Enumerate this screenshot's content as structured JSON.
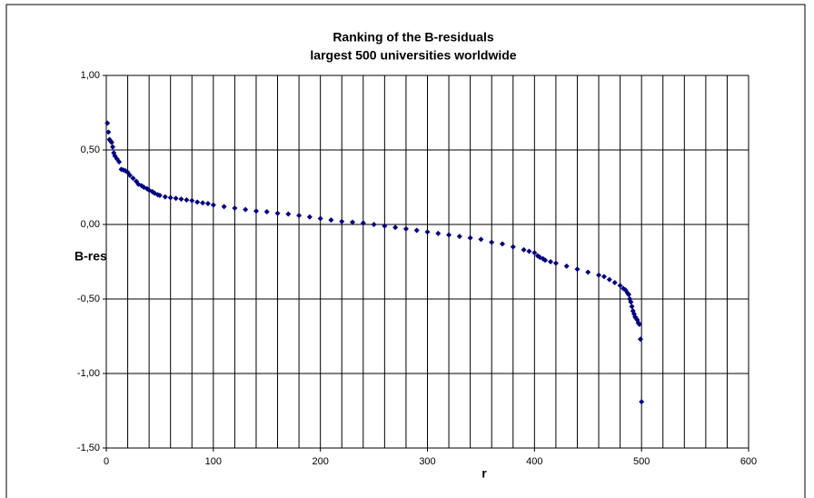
{
  "chart_data": {
    "type": "scatter",
    "title": "Ranking of the B-residuals",
    "subtitle": "largest 500 universities worldwide",
    "x_label": "r",
    "y_label": "B-residual",
    "color": "#000080",
    "grid": true,
    "xlim": [
      0,
      600
    ],
    "xticks": [
      0,
      100,
      200,
      300,
      400,
      500,
      600
    ],
    "xgrid": [
      0,
      20,
      40,
      60,
      80,
      100,
      120,
      140,
      160,
      180,
      200,
      220,
      240,
      260,
      280,
      300,
      320,
      340,
      360,
      380,
      400,
      420,
      440,
      460,
      480,
      500,
      520,
      540,
      560,
      580,
      600
    ],
    "ylim": [
      -1.5,
      1.0
    ],
    "yticks": [
      {
        "value": -1.5,
        "label": "-1,50"
      },
      {
        "value": -1.0,
        "label": "-1,00"
      },
      {
        "value": -0.5,
        "label": "-0,50"
      },
      {
        "value": 0.0,
        "label": "0,00"
      },
      {
        "value": 0.5,
        "label": "0,50"
      },
      {
        "value": 1.0,
        "label": "1,00"
      }
    ],
    "x": [
      1,
      2,
      3,
      4,
      5,
      6,
      7,
      8,
      10,
      12,
      14,
      16,
      18,
      20,
      22,
      25,
      28,
      30,
      33,
      35,
      38,
      40,
      43,
      45,
      48,
      50,
      55,
      60,
      65,
      70,
      75,
      80,
      85,
      90,
      95,
      100,
      110,
      120,
      130,
      140,
      150,
      160,
      170,
      180,
      190,
      200,
      210,
      220,
      230,
      240,
      250,
      260,
      270,
      280,
      290,
      300,
      310,
      320,
      330,
      340,
      350,
      360,
      370,
      380,
      390,
      395,
      400,
      403,
      405,
      408,
      410,
      415,
      420,
      430,
      440,
      450,
      460,
      465,
      470,
      475,
      480,
      483,
      485,
      487,
      488,
      489,
      490,
      491,
      492,
      493,
      494,
      495,
      496,
      497,
      498,
      499,
      500
    ],
    "values": [
      0.68,
      0.62,
      0.57,
      0.56,
      0.55,
      0.52,
      0.48,
      0.46,
      0.44,
      0.42,
      0.37,
      0.365,
      0.36,
      0.35,
      0.33,
      0.31,
      0.29,
      0.27,
      0.26,
      0.25,
      0.24,
      0.23,
      0.22,
      0.21,
      0.2,
      0.195,
      0.185,
      0.18,
      0.175,
      0.17,
      0.165,
      0.16,
      0.15,
      0.145,
      0.14,
      0.13,
      0.12,
      0.11,
      0.1,
      0.09,
      0.085,
      0.075,
      0.07,
      0.06,
      0.05,
      0.04,
      0.03,
      0.02,
      0.015,
      0.01,
      0.0,
      -0.01,
      -0.02,
      -0.03,
      -0.04,
      -0.05,
      -0.06,
      -0.07,
      -0.08,
      -0.09,
      -0.1,
      -0.12,
      -0.13,
      -0.15,
      -0.17,
      -0.18,
      -0.19,
      -0.21,
      -0.22,
      -0.23,
      -0.24,
      -0.25,
      -0.26,
      -0.28,
      -0.3,
      -0.32,
      -0.34,
      -0.35,
      -0.37,
      -0.39,
      -0.41,
      -0.43,
      -0.44,
      -0.46,
      -0.47,
      -0.5,
      -0.52,
      -0.55,
      -0.58,
      -0.6,
      -0.62,
      -0.63,
      -0.64,
      -0.66,
      -0.67,
      -0.77,
      -1.19
    ]
  }
}
